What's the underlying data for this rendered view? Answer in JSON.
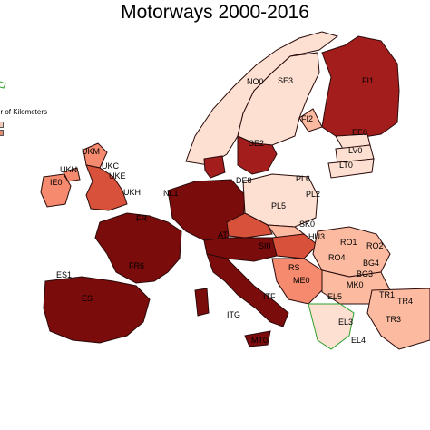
{
  "title": "Motorways 2000-2016",
  "legend": {
    "title": "er of Kilometers",
    "swatches": [
      "#f2c9b8",
      "#e08a6e"
    ]
  },
  "colors": {
    "lightest": "#fde0d2",
    "light": "#fcbba1",
    "medium_light": "#f58a6e",
    "medium": "#d8513a",
    "dark": "#a31d1d",
    "darkest": "#7a0c0c",
    "water_outline": "#2ca02c"
  },
  "regions": [
    {
      "code": "FI1",
      "shade": "dark"
    },
    {
      "code": "SE3",
      "shade": "lightest"
    },
    {
      "code": "NO0",
      "shade": "lightest"
    },
    {
      "code": "FI2",
      "shade": "light"
    },
    {
      "code": "EE0",
      "shade": "lightest"
    },
    {
      "code": "LV0",
      "shade": "lightest"
    },
    {
      "code": "LT0",
      "shade": "lightest"
    },
    {
      "code": "SE2",
      "shade": "dark"
    },
    {
      "code": "UKM",
      "shade": "medium_light"
    },
    {
      "code": "UKC",
      "shade": "medium"
    },
    {
      "code": "UKE",
      "shade": "medium"
    },
    {
      "code": "UKN",
      "shade": "medium_light"
    },
    {
      "code": "IE0",
      "shade": "medium_light"
    },
    {
      "code": "UKH",
      "shade": "medium"
    },
    {
      "code": "NL1",
      "shade": "darkest"
    },
    {
      "code": "DE8",
      "shade": "darkest"
    },
    {
      "code": "PL6",
      "shade": "lightest"
    },
    {
      "code": "PL2",
      "shade": "lightest"
    },
    {
      "code": "PL5",
      "shade": "lightest"
    },
    {
      "code": "FR",
      "shade": "darkest"
    },
    {
      "code": "SK0",
      "shade": "light"
    },
    {
      "code": "HU3",
      "shade": "medium"
    },
    {
      "code": "RO1",
      "shade": "light"
    },
    {
      "code": "RO2",
      "shade": "light"
    },
    {
      "code": "RO4",
      "shade": "light"
    },
    {
      "code": "AT",
      "shade": "darkest"
    },
    {
      "code": "SI0",
      "shade": "darkest"
    },
    {
      "code": "BG3",
      "shade": "light"
    },
    {
      "code": "ES1",
      "shade": "darkest"
    },
    {
      "code": "FR6",
      "shade": "darkest"
    },
    {
      "code": "ME0",
      "shade": "lightest"
    },
    {
      "code": "MK0",
      "shade": "lightest"
    },
    {
      "code": "TR1",
      "shade": "light"
    },
    {
      "code": "TR4",
      "shade": "light"
    },
    {
      "code": "ITF",
      "shade": "darkest"
    },
    {
      "code": "ITG",
      "shade": "darkest"
    },
    {
      "code": "EL3",
      "shade": "light"
    },
    {
      "code": "EL4",
      "shade": "light"
    },
    {
      "code": "MT0",
      "shade": "darkest"
    }
  ],
  "labels": [
    "FI1",
    "SE3",
    "NO0",
    "FI2",
    "EE0",
    "LV0",
    "LT0",
    "SE2",
    "UKM",
    "UKC",
    "UKE",
    "UKN",
    "IE0",
    "UKH",
    "NL1",
    "DE8",
    "PL6",
    "PL2",
    "PL5",
    "SK0",
    "HU3",
    "RO1",
    "RO2",
    "RO4",
    "SI0",
    "BG3",
    "ES1",
    "FR6",
    "ES",
    "ME0",
    "MK0",
    "EL5",
    "EL3",
    "EL4",
    "TR1",
    "TR4",
    "TR3",
    "ITF",
    "ITG",
    "MT0",
    "FR",
    "AT",
    "RS",
    "BG4"
  ]
}
